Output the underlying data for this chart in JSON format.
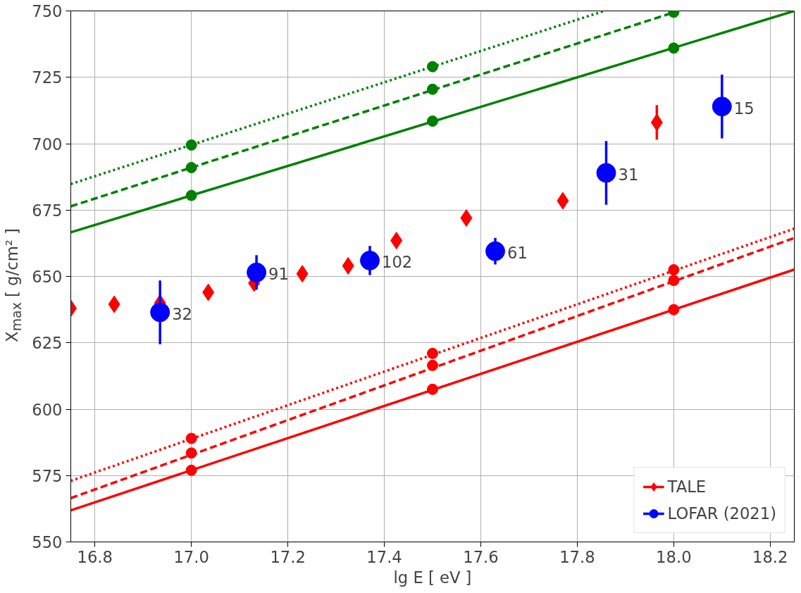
{
  "chart_data": {
    "type": "scatter",
    "xlabel": "lg E [ eV ]",
    "ylabel": "X$_{max}$ [ g/cm² ]",
    "xlim": [
      16.75,
      18.25
    ],
    "ylim": [
      550,
      750
    ],
    "xticks": [
      16.8,
      {
        "value": 17.0,
        "label": "17.0"
      },
      17.2,
      17.4,
      17.6,
      17.8,
      {
        "value": 18.0,
        "label": "18.0"
      },
      18.2
    ],
    "yticks": [
      550,
      575,
      600,
      625,
      650,
      675,
      700,
      725,
      750
    ],
    "grid": true,
    "legend": "bottom right",
    "series": [
      {
        "type": "line",
        "color": "#008000",
        "line_style": "solid",
        "marker": "none",
        "x": [
          16.75,
          18.25
        ],
        "values": [
          666.6,
          750
        ]
      },
      {
        "type": "line",
        "color": "#008000",
        "line_style": "dashed",
        "marker": "none",
        "x": [
          16.75,
          18.01
        ],
        "values": [
          676.4,
          750
        ]
      },
      {
        "type": "line",
        "color": "#008000",
        "line_style": "dotted",
        "marker": "none",
        "x": [
          16.75,
          17.856
        ],
        "values": [
          684.8,
          750
        ]
      },
      {
        "color": "#008000",
        "marker": "circle",
        "x": [
          17.0,
          17.5,
          18.0,
          17.0,
          17.5,
          18.0,
          17.0,
          17.5
        ],
        "values": [
          680.5,
          708.5,
          736,
          691,
          720.5,
          749.5,
          699.5,
          729
        ]
      },
      {
        "type": "line",
        "color": "#ff0000",
        "line_style": "solid",
        "marker": "none",
        "x": [
          16.75,
          18.25
        ],
        "values": [
          561.9,
          652.6
        ]
      },
      {
        "type": "line",
        "color": "#ff0000",
        "line_style": "dashed",
        "marker": "none",
        "x": [
          16.75,
          18.25
        ],
        "values": [
          566.5,
          664.5
        ]
      },
      {
        "type": "line",
        "color": "#ff0000",
        "line_style": "dotted",
        "marker": "none",
        "x": [
          16.75,
          18.25
        ],
        "values": [
          573,
          668
        ]
      },
      {
        "color": "#ff0000",
        "marker": "circle",
        "x": [
          17.0,
          17.5,
          18.0,
          17.0,
          17.5,
          18.0,
          17.0,
          17.5,
          18.0
        ],
        "values": [
          577,
          607.5,
          637.5,
          583.5,
          616.5,
          648.5,
          589,
          621,
          652.5
        ]
      },
      {
        "name": "TALE",
        "color": "#ff0000",
        "marker": "diamond",
        "x": [
          16.75,
          16.84,
          16.935,
          17.035,
          17.13,
          17.23,
          17.325,
          17.425,
          17.57,
          17.77,
          17.965
        ],
        "values": [
          638,
          639.5,
          640,
          644,
          647.5,
          651,
          654,
          663.5,
          672,
          678.5,
          708
        ],
        "errors": [
          2,
          2,
          null,
          2,
          2,
          2,
          2,
          2,
          2,
          2,
          6.5
        ]
      },
      {
        "name": "LOFAR (2021)",
        "color": "#0000ff",
        "marker": "circle",
        "x": [
          16.935,
          17.135,
          17.37,
          17.63,
          17.86,
          18.1
        ],
        "values": [
          636.5,
          651.5,
          656,
          659.5,
          689,
          714
        ],
        "errors": [
          12,
          6.5,
          5.5,
          5,
          12,
          12
        ]
      }
    ],
    "annotations": [
      {
        "text": "32",
        "x": 16.935,
        "y": 636.5
      },
      {
        "text": "91",
        "x": 17.135,
        "y": 651.5
      },
      {
        "text": "102",
        "x": 17.37,
        "y": 656
      },
      {
        "text": "61",
        "x": 17.63,
        "y": 659.5
      },
      {
        "text": "31",
        "x": 17.86,
        "y": 689
      },
      {
        "text": "15",
        "x": 18.1,
        "y": 714
      }
    ]
  }
}
